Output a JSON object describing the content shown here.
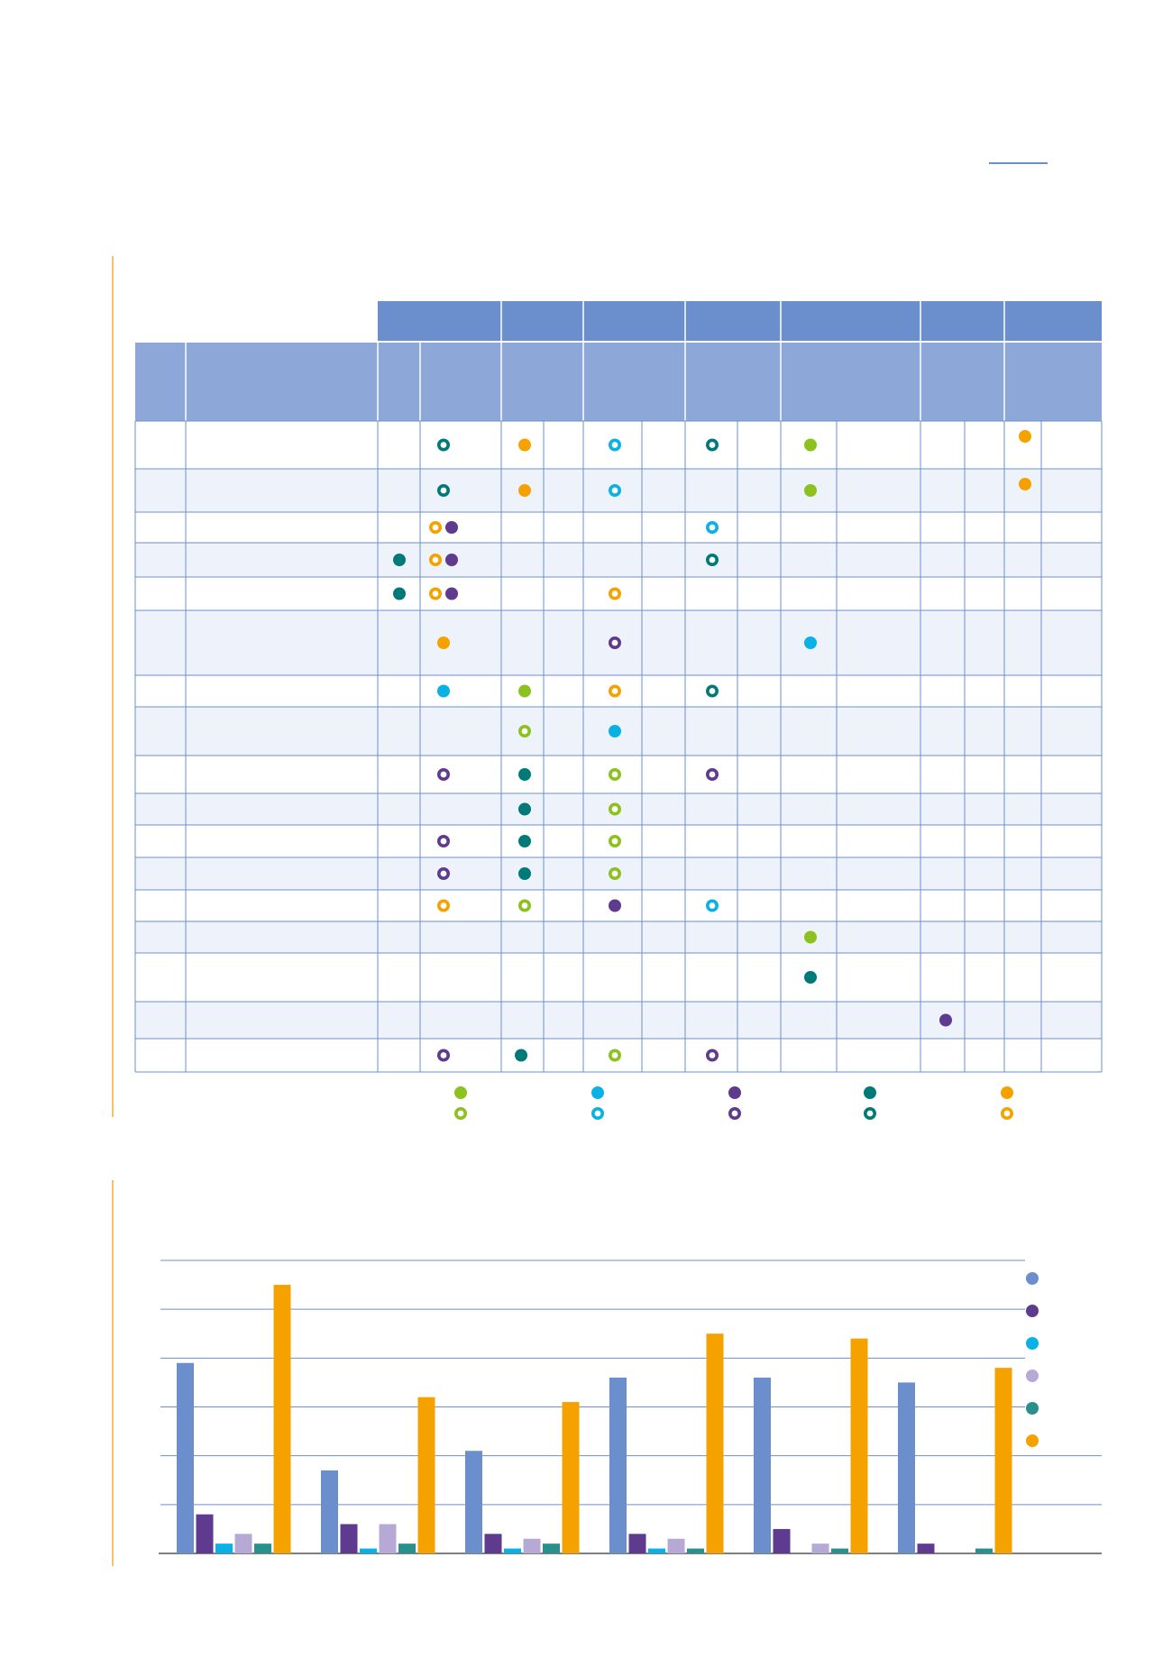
{
  "colors": {
    "header_dark": "#6b8fcc",
    "header_light": "#8ca7d8",
    "row_alt": "#eef3fb",
    "grid": "#6b8fcc",
    "green": "#8dc11f",
    "cyan": "#0ab1e5",
    "purple": "#5e3b8f",
    "teal": "#007a78",
    "orange": "#f5a200",
    "steel": "#6b8fcc",
    "lavender": "#b7a9d6",
    "teal2": "#2a908c",
    "accent_line": "#f5c26b"
  },
  "matrix": {
    "dot_legend": [
      {
        "color": "green",
        "markers": [
          "filled",
          "ring"
        ]
      },
      {
        "color": "cyan",
        "markers": [
          "filled",
          "ring"
        ]
      },
      {
        "color": "purple",
        "markers": [
          "filled",
          "ring"
        ]
      },
      {
        "color": "teal",
        "markers": [
          "filled",
          "ring"
        ]
      },
      {
        "color": "orange",
        "markers": [
          "filled",
          "ring"
        ]
      }
    ],
    "rows": [
      [
        [
          1,
          "teal",
          "ring"
        ],
        [
          3,
          "orange",
          "filled"
        ],
        [
          5,
          "cyan",
          "ring"
        ],
        [
          7,
          "teal",
          "ring"
        ],
        [
          9,
          "green",
          "filled"
        ],
        [
          13,
          "orange",
          "filled"
        ]
      ],
      [
        [
          1,
          "teal",
          "ring"
        ],
        [
          3,
          "orange",
          "filled"
        ],
        [
          5,
          "cyan",
          "ring"
        ],
        [
          9,
          "green",
          "filled"
        ],
        [
          13,
          "orange",
          "filled"
        ]
      ],
      [
        [
          1,
          "orange",
          "ring"
        ],
        [
          1,
          "purple",
          "filled"
        ],
        [
          7,
          "cyan",
          "ring"
        ]
      ],
      [
        [
          0,
          "teal",
          "filled"
        ],
        [
          1,
          "orange",
          "ring"
        ],
        [
          1,
          "purple",
          "filled"
        ],
        [
          7,
          "teal",
          "ring"
        ]
      ],
      [
        [
          0,
          "teal",
          "filled"
        ],
        [
          1,
          "orange",
          "ring"
        ],
        [
          1,
          "purple",
          "filled"
        ],
        [
          5,
          "orange",
          "ring"
        ]
      ],
      [
        [
          1,
          "orange",
          "filled"
        ],
        [
          5,
          "purple",
          "ring"
        ],
        [
          9,
          "cyan",
          "filled"
        ]
      ],
      [
        [
          1,
          "cyan",
          "filled"
        ],
        [
          3,
          "green",
          "filled"
        ],
        [
          5,
          "orange",
          "ring"
        ],
        [
          7,
          "teal",
          "ring"
        ]
      ],
      [
        [
          3,
          "green",
          "ring"
        ],
        [
          5,
          "cyan",
          "filled"
        ]
      ],
      [
        [
          1,
          "purple",
          "ring"
        ],
        [
          3,
          "teal",
          "filled"
        ],
        [
          5,
          "green",
          "ring"
        ],
        [
          7,
          "purple",
          "ring"
        ]
      ],
      [
        [
          3,
          "teal",
          "filled"
        ],
        [
          5,
          "green",
          "ring"
        ]
      ],
      [
        [
          1,
          "purple",
          "ring"
        ],
        [
          3,
          "teal",
          "filled"
        ],
        [
          5,
          "green",
          "ring"
        ]
      ],
      [
        [
          1,
          "purple",
          "ring"
        ],
        [
          3,
          "teal",
          "filled"
        ],
        [
          5,
          "green",
          "ring"
        ]
      ],
      [
        [
          1,
          "orange",
          "ring"
        ],
        [
          3,
          "green",
          "ring"
        ],
        [
          5,
          "purple",
          "filled"
        ],
        [
          7,
          "cyan",
          "ring"
        ]
      ],
      [
        [
          9,
          "green",
          "filled"
        ]
      ],
      [
        [
          9,
          "teal",
          "filled"
        ]
      ],
      [
        [
          11,
          "purple",
          "filled"
        ]
      ],
      [
        [
          1,
          "purple",
          "ring"
        ],
        [
          2,
          "teal",
          "filled"
        ],
        [
          5,
          "green",
          "ring"
        ],
        [
          7,
          "purple",
          "ring"
        ]
      ]
    ]
  },
  "chart_data": {
    "type": "bar",
    "title": "",
    "xlabel": "",
    "ylabel": "",
    "categories": [
      "",
      "",
      "",
      "",
      "",
      ""
    ],
    "ylim": [
      0,
      60
    ],
    "gridlines": [
      10,
      20,
      30,
      40,
      50,
      60
    ],
    "grid": true,
    "legend_position": "right",
    "series": [
      {
        "color": "#6b8fcc",
        "values": [
          39,
          17,
          21,
          36,
          36,
          35
        ]
      },
      {
        "color": "#5e3b8f",
        "values": [
          8,
          6,
          4,
          4,
          5,
          2
        ]
      },
      {
        "color": "#0ab1e5",
        "values": [
          2,
          1,
          1,
          1,
          0,
          0
        ]
      },
      {
        "color": "#b7a9d6",
        "values": [
          4,
          6,
          3,
          3,
          2,
          0
        ]
      },
      {
        "color": "#2a908c",
        "values": [
          2,
          2,
          2,
          1,
          1,
          1
        ]
      },
      {
        "color": "#f5a200",
        "values": [
          55,
          32,
          31,
          45,
          44,
          38
        ]
      }
    ]
  }
}
